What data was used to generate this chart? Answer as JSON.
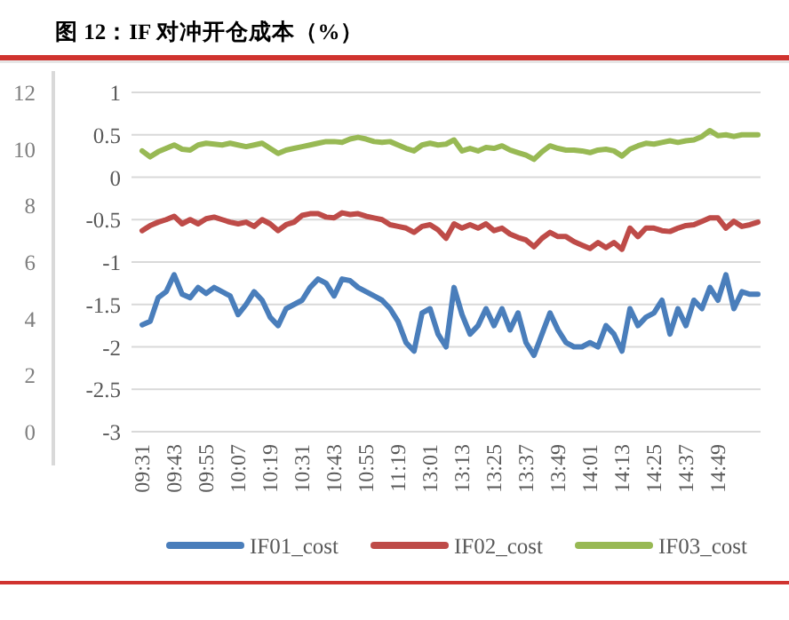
{
  "chart_data": {
    "type": "line",
    "title": "图 12：IF 对冲开仓成本（%）",
    "categories": [
      "09:31",
      null,
      null,
      null,
      "09:43",
      null,
      null,
      null,
      "09:55",
      null,
      null,
      null,
      "10:07",
      null,
      null,
      null,
      "10:19",
      null,
      null,
      null,
      "10:31",
      null,
      null,
      null,
      "10:43",
      null,
      null,
      null,
      "10:55",
      null,
      null,
      null,
      "11:19",
      null,
      null,
      null,
      "13:01",
      null,
      null,
      null,
      "13:13",
      null,
      null,
      null,
      "13:25",
      null,
      null,
      null,
      "13:37",
      null,
      null,
      null,
      "13:49",
      null,
      null,
      null,
      "14:01",
      null,
      null,
      null,
      "14:13",
      null,
      null,
      null,
      "14:25",
      null,
      null,
      null,
      "14:37",
      null,
      null,
      null,
      "14:49",
      null,
      null,
      null,
      null,
      null
    ],
    "series": [
      {
        "name": "IF01_cost",
        "color": "#4a7ebb",
        "values": [
          -1.74,
          -1.7,
          -1.42,
          -1.35,
          -1.15,
          -1.38,
          -1.42,
          -1.3,
          -1.37,
          -1.3,
          -1.35,
          -1.4,
          -1.62,
          -1.5,
          -1.35,
          -1.45,
          -1.65,
          -1.75,
          -1.55,
          -1.5,
          -1.45,
          -1.3,
          -1.2,
          -1.25,
          -1.4,
          -1.2,
          -1.22,
          -1.3,
          -1.35,
          -1.4,
          -1.45,
          -1.55,
          -1.7,
          -1.95,
          -2.05,
          -1.6,
          -1.55,
          -1.85,
          -2.0,
          -1.3,
          -1.62,
          -1.85,
          -1.75,
          -1.55,
          -1.75,
          -1.55,
          -1.8,
          -1.6,
          -1.95,
          -2.1,
          -1.85,
          -1.6,
          -1.8,
          -1.95,
          -2.0,
          -2.0,
          -1.95,
          -2.0,
          -1.75,
          -1.85,
          -2.05,
          -1.55,
          -1.75,
          -1.65,
          -1.6,
          -1.45,
          -1.85,
          -1.55,
          -1.75,
          -1.45,
          -1.55,
          -1.3,
          -1.45,
          -1.15,
          -1.55,
          -1.35,
          -1.38,
          -1.38
        ]
      },
      {
        "name": "IF02_cost",
        "color": "#be4b48",
        "values": [
          -0.63,
          -0.57,
          -0.53,
          -0.5,
          -0.46,
          -0.55,
          -0.5,
          -0.55,
          -0.49,
          -0.47,
          -0.5,
          -0.53,
          -0.55,
          -0.53,
          -0.58,
          -0.5,
          -0.55,
          -0.63,
          -0.56,
          -0.53,
          -0.45,
          -0.43,
          -0.43,
          -0.47,
          -0.48,
          -0.42,
          -0.44,
          -0.43,
          -0.46,
          -0.48,
          -0.5,
          -0.56,
          -0.58,
          -0.6,
          -0.65,
          -0.58,
          -0.56,
          -0.62,
          -0.72,
          -0.55,
          -0.6,
          -0.56,
          -0.6,
          -0.55,
          -0.63,
          -0.6,
          -0.67,
          -0.71,
          -0.74,
          -0.82,
          -0.72,
          -0.65,
          -0.7,
          -0.7,
          -0.76,
          -0.8,
          -0.84,
          -0.77,
          -0.83,
          -0.77,
          -0.85,
          -0.6,
          -0.7,
          -0.6,
          -0.6,
          -0.63,
          -0.64,
          -0.6,
          -0.57,
          -0.56,
          -0.52,
          -0.48,
          -0.48,
          -0.6,
          -0.52,
          -0.58,
          -0.56,
          -0.53
        ]
      },
      {
        "name": "IF03_cost",
        "color": "#98b954",
        "values": [
          0.31,
          0.24,
          0.3,
          0.34,
          0.38,
          0.33,
          0.32,
          0.38,
          0.4,
          0.39,
          0.38,
          0.4,
          0.38,
          0.36,
          0.38,
          0.4,
          0.34,
          0.28,
          0.32,
          0.34,
          0.36,
          0.38,
          0.4,
          0.42,
          0.42,
          0.41,
          0.45,
          0.47,
          0.45,
          0.42,
          0.41,
          0.42,
          0.38,
          0.34,
          0.31,
          0.38,
          0.4,
          0.38,
          0.39,
          0.44,
          0.31,
          0.34,
          0.31,
          0.35,
          0.34,
          0.37,
          0.32,
          0.29,
          0.26,
          0.21,
          0.3,
          0.37,
          0.34,
          0.32,
          0.32,
          0.31,
          0.29,
          0.32,
          0.33,
          0.31,
          0.25,
          0.33,
          0.37,
          0.4,
          0.39,
          0.41,
          0.43,
          0.41,
          0.43,
          0.44,
          0.48,
          0.55,
          0.49,
          0.5,
          0.48,
          0.5,
          0.5,
          0.5
        ]
      }
    ],
    "ylim": [
      -3,
      1
    ],
    "yticks": [
      -3,
      -2.5,
      -2,
      -1.5,
      -1,
      -0.5,
      0,
      0.5,
      1
    ],
    "y2lim": [
      0,
      12
    ],
    "y2ticks": [
      0,
      2,
      4,
      6,
      8,
      10,
      12
    ],
    "grid": "y",
    "legend": "bottom",
    "marker": "none",
    "line_style": "solid"
  }
}
